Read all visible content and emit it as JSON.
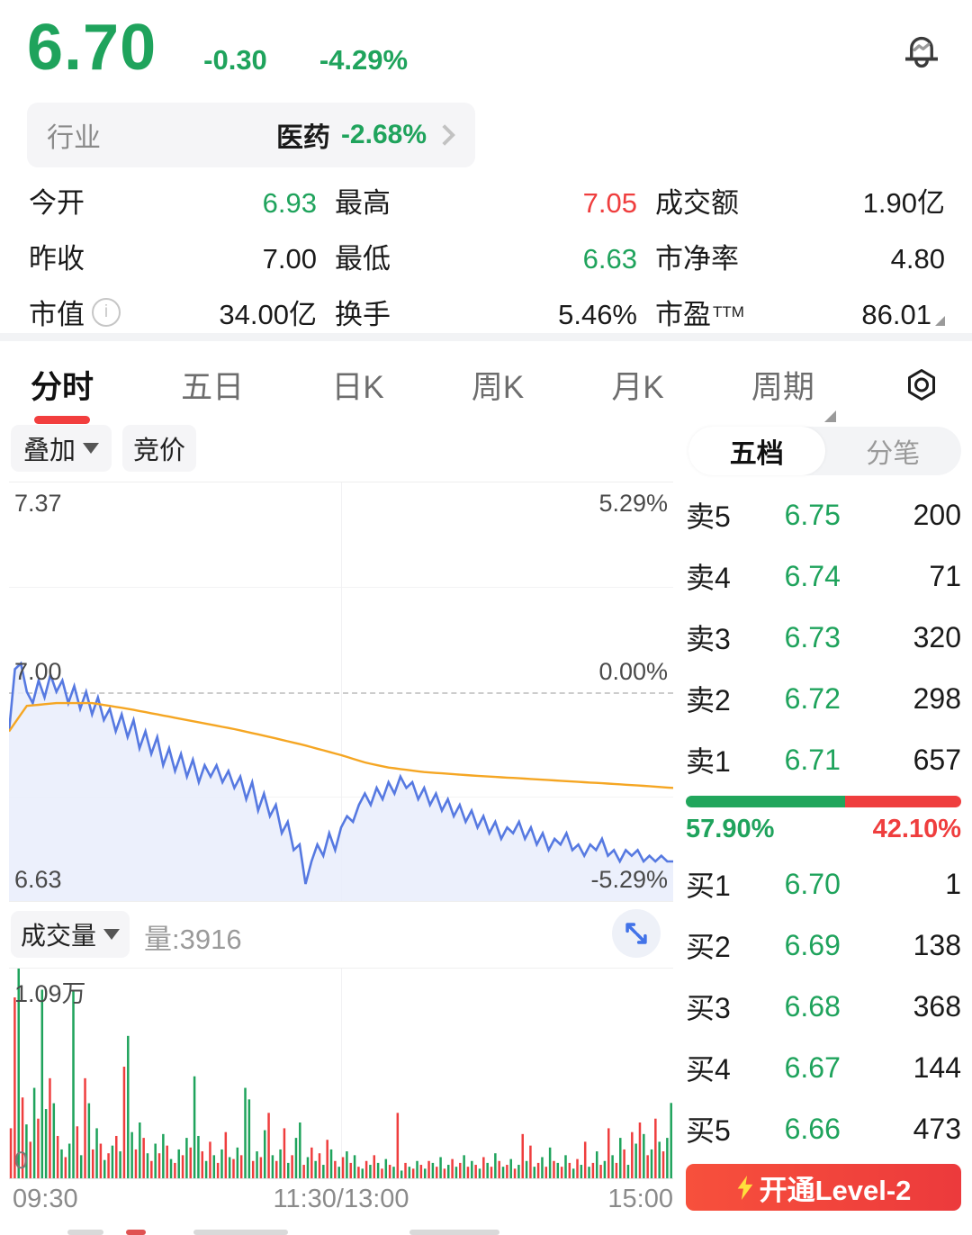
{
  "colors": {
    "green": "#1FA35C",
    "red": "#EF3E3E",
    "blue": "#5679E1",
    "orange": "#F5A623",
    "blue_fill": "#E9EDFB"
  },
  "header": {
    "price": "6.70",
    "change": "-0.30",
    "change_pct": "-4.29%"
  },
  "industry": {
    "label": "行业",
    "name": "医药",
    "change": "-2.68%"
  },
  "stats": {
    "r1c1_label": "今开",
    "r1c1_value": "6.93",
    "r1c2_label": "最高",
    "r1c2_value": "7.05",
    "r1c3_label": "成交额",
    "r1c3_value": "1.90亿",
    "r2c1_label": "昨收",
    "r2c1_value": "7.00",
    "r2c2_label": "最低",
    "r2c2_value": "6.63",
    "r2c3_label": "市净率",
    "r2c3_value": "4.80",
    "r3c1_label": "市值",
    "r3c1_value": "34.00亿",
    "r3c2_label": "换手",
    "r3c2_value": "5.46%",
    "r3c3_label": "市盈",
    "r3c3_sup": "TTM",
    "r3c3_value": "86.01"
  },
  "tabs": {
    "t1": "分时",
    "t2": "五日",
    "t3": "日K",
    "t4": "周K",
    "t5": "月K",
    "t6": "周期"
  },
  "toolbar": {
    "overlay": "叠加",
    "auction": "竞价",
    "depth": "五档",
    "ticks": "分笔"
  },
  "order_book": {
    "sells": [
      {
        "label": "卖5",
        "price": "6.75",
        "qty": "200"
      },
      {
        "label": "卖4",
        "price": "6.74",
        "qty": "71"
      },
      {
        "label": "卖3",
        "price": "6.73",
        "qty": "320"
      },
      {
        "label": "卖2",
        "price": "6.72",
        "qty": "298"
      },
      {
        "label": "卖1",
        "price": "6.71",
        "qty": "657"
      }
    ],
    "buys": [
      {
        "label": "买1",
        "price": "6.70",
        "qty": "1"
      },
      {
        "label": "买2",
        "price": "6.69",
        "qty": "138"
      },
      {
        "label": "买3",
        "price": "6.68",
        "qty": "368"
      },
      {
        "label": "买4",
        "price": "6.67",
        "qty": "144"
      },
      {
        "label": "买5",
        "price": "6.66",
        "qty": "473"
      }
    ],
    "buy_ratio": "57.90%",
    "sell_ratio": "42.10%",
    "buy_ratio_pct": 57.9
  },
  "level2": {
    "label": "开通Level-2"
  },
  "volume_panel": {
    "selector": "成交量",
    "latest": "量:3916",
    "ymax_label": "1.09万",
    "ymin_label": "0"
  },
  "chart_data": {
    "type": "line",
    "title": "分时 intraday price vs average",
    "x_ticks": [
      "09:30",
      "11:30/13:00",
      "15:00"
    ],
    "y_left_ticks": [
      "7.37",
      "7.00",
      "6.63"
    ],
    "y_right_ticks": [
      "5.29%",
      "0.00%",
      "-5.29%"
    ],
    "y_range": [
      6.63,
      7.37
    ],
    "prev_close": 7.0,
    "grid": {
      "h_lines": "25%,50%(dashed zero),75%",
      "v_line": "center"
    },
    "series": [
      {
        "name": "price",
        "color_key": "blue",
        "values": [
          6.93,
          7.04,
          7.05,
          7.0,
          6.98,
          7.02,
          6.99,
          7.03,
          7.0,
          7.02,
          6.98,
          7.01,
          6.97,
          7.0,
          6.96,
          6.99,
          6.95,
          6.97,
          6.93,
          6.96,
          6.92,
          6.95,
          6.9,
          6.93,
          6.89,
          6.92,
          6.87,
          6.9,
          6.86,
          6.89,
          6.85,
          6.88,
          6.84,
          6.87,
          6.85,
          6.87,
          6.84,
          6.86,
          6.83,
          6.85,
          6.81,
          6.84,
          6.79,
          6.82,
          6.78,
          6.8,
          6.75,
          6.77,
          6.72,
          6.73,
          6.66,
          6.7,
          6.73,
          6.71,
          6.75,
          6.72,
          6.76,
          6.78,
          6.77,
          6.8,
          6.82,
          6.8,
          6.83,
          6.81,
          6.84,
          6.82,
          6.85,
          6.83,
          6.84,
          6.81,
          6.83,
          6.8,
          6.82,
          6.79,
          6.81,
          6.78,
          6.8,
          6.77,
          6.79,
          6.76,
          6.78,
          6.75,
          6.77,
          6.74,
          6.76,
          6.75,
          6.77,
          6.74,
          6.76,
          6.73,
          6.75,
          6.72,
          6.74,
          6.73,
          6.75,
          6.72,
          6.73,
          6.71,
          6.73,
          6.72,
          6.74,
          6.71,
          6.72,
          6.7,
          6.72,
          6.71,
          6.72,
          6.7,
          6.71,
          6.7,
          6.71,
          6.7,
          6.7
        ]
      },
      {
        "name": "avg_price",
        "color_key": "orange",
        "keypoints": [
          [
            0,
            6.93
          ],
          [
            3,
            6.975
          ],
          [
            8,
            6.98
          ],
          [
            14,
            6.98
          ],
          [
            20,
            6.97
          ],
          [
            26,
            6.958
          ],
          [
            32,
            6.946
          ],
          [
            38,
            6.934
          ],
          [
            44,
            6.92
          ],
          [
            50,
            6.905
          ],
          [
            56,
            6.888
          ],
          [
            60,
            6.875
          ],
          [
            64,
            6.866
          ],
          [
            70,
            6.858
          ],
          [
            78,
            6.852
          ],
          [
            86,
            6.847
          ],
          [
            94,
            6.842
          ],
          [
            102,
            6.837
          ],
          [
            108,
            6.833
          ],
          [
            112,
            6.83
          ]
        ]
      }
    ],
    "volume": {
      "type": "bar",
      "ymax": 10900,
      "encoding": "positive=green(buy) negative=red(sell)",
      "values": [
        -2600,
        -9400,
        10900,
        -4200,
        2800,
        -1900,
        4700,
        -3100,
        9800,
        3600,
        -5200,
        3900,
        -2200,
        1500,
        -1100,
        1800,
        9800,
        -2700,
        1200,
        -5200,
        3900,
        -1500,
        2600,
        -1800,
        950,
        -1300,
        1700,
        -2200,
        1400,
        -5800,
        7400,
        2400,
        -1500,
        2900,
        -2100,
        1300,
        -900,
        1800,
        -1300,
        2300,
        -1700,
        1000,
        -800,
        1500,
        -1200,
        2100,
        -1600,
        5300,
        2200,
        -1400,
        900,
        -1900,
        1200,
        -800,
        1500,
        -2400,
        1100,
        -1000,
        1600,
        -1200,
        4700,
        4100,
        -900,
        1400,
        -1100,
        2500,
        -3400,
        1200,
        -900,
        1500,
        -2600,
        800,
        -1200,
        2100,
        2900,
        -700,
        1100,
        -1600,
        900,
        -1300,
        700,
        -2000,
        1500,
        -900,
        600,
        -1100,
        1400,
        -800,
        1200,
        -600,
        500,
        -900,
        700,
        -1200,
        800,
        -500,
        1000,
        -700,
        600,
        -3400,
        400,
        -800,
        600,
        -500,
        900,
        -700,
        500,
        -900,
        800,
        -600,
        1100,
        -500,
        700,
        -1000,
        600,
        -800,
        1200,
        -600,
        900,
        -700,
        500,
        -1100,
        800,
        -600,
        1300,
        -900,
        600,
        -700,
        1000,
        -500,
        700,
        -2300,
        900,
        -1700,
        600,
        -800,
        1100,
        -600,
        1600,
        -900,
        800,
        -600,
        1200,
        -800,
        500,
        -1000,
        700,
        -1900,
        600,
        -800,
        1400,
        -700,
        900,
        -2600,
        1200,
        -800,
        2100,
        -1500,
        700,
        -2400,
        1800,
        -2900,
        2300,
        -1200,
        1500,
        -3100,
        1900,
        -1400,
        2100,
        3916
      ]
    }
  }
}
